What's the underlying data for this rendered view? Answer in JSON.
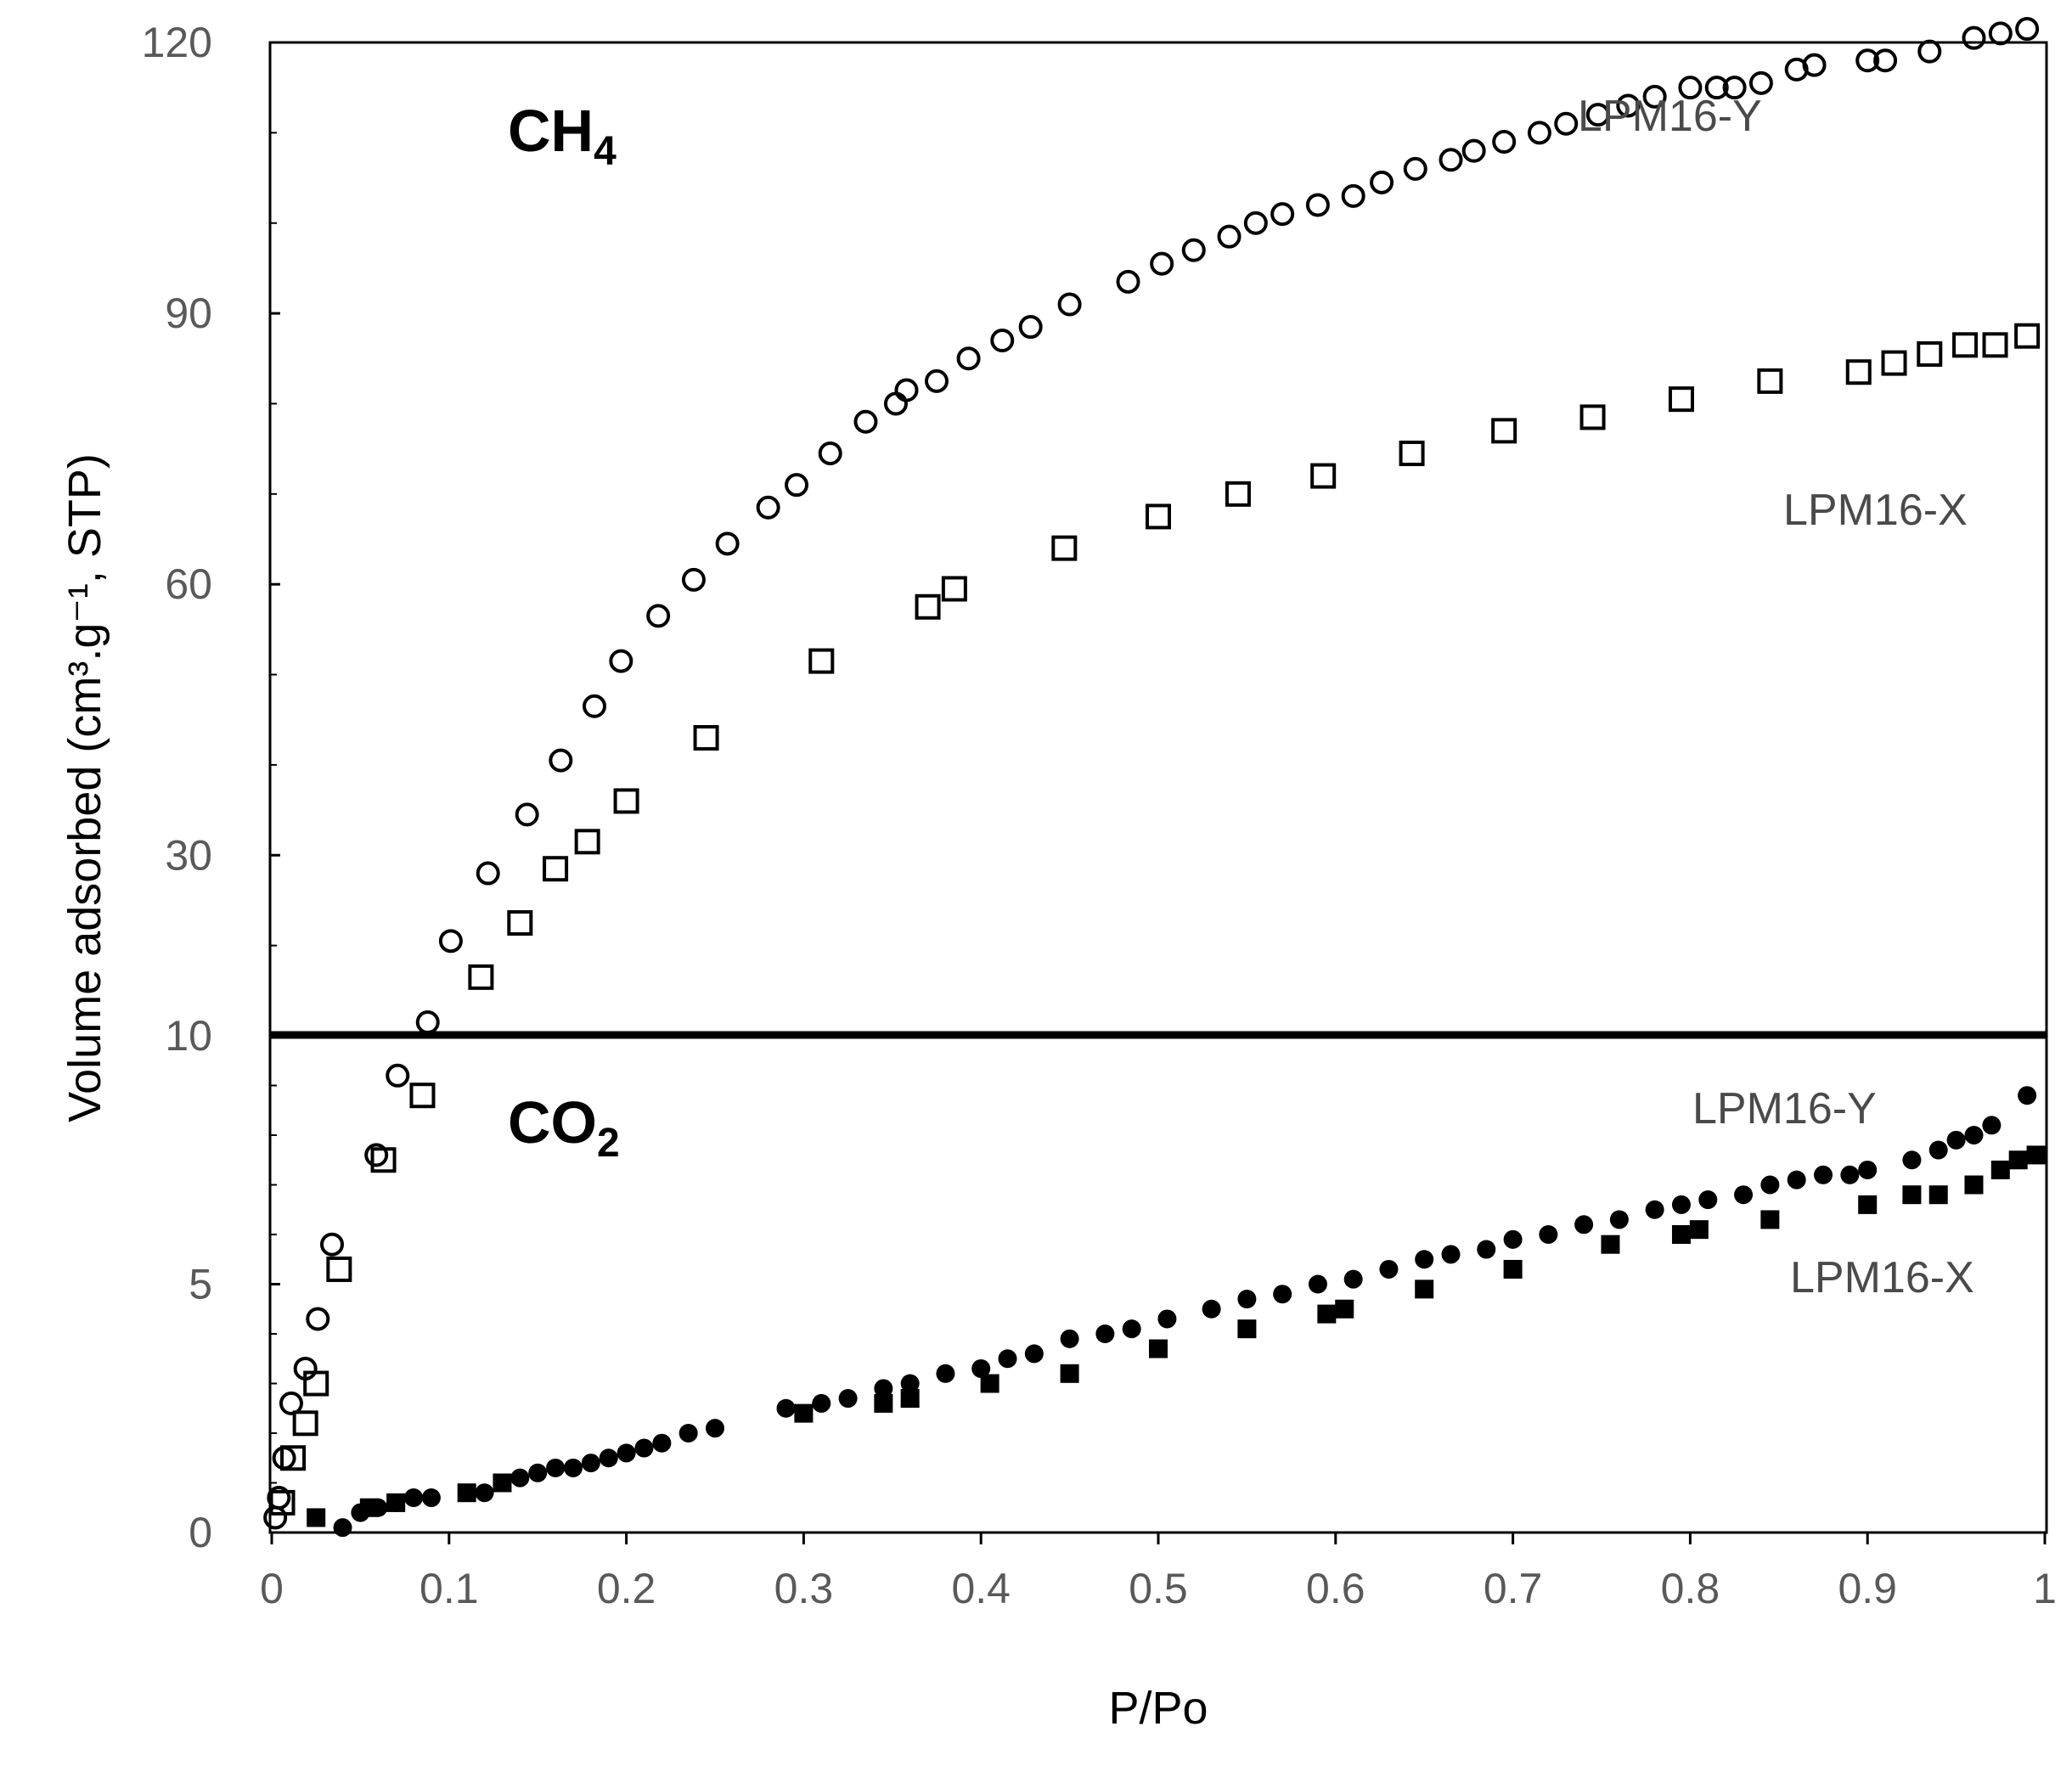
{
  "chart_data": {
    "type": "scatter",
    "xlabel": "P/Po",
    "ylabel": "Volume adsorbed (cm³.g⁻¹, STP)",
    "xlim": [
      0,
      1
    ],
    "x_ticks": [
      "0",
      "0.1",
      "0.2",
      "0.3",
      "0.4",
      "0.5",
      "0.6",
      "0.7",
      "0.8",
      "0.9",
      "1"
    ],
    "x_tick_values": [
      0,
      0.1,
      0.2,
      0.3,
      0.4,
      0.5,
      0.6,
      0.7,
      0.8,
      0.9,
      1
    ],
    "y_axis": {
      "note": "broken axis: lower panel 0-10 (CO2), upper panel 10-120 (CH4)",
      "lower_range": [
        0,
        10
      ],
      "upper_range": [
        10,
        120
      ],
      "tick_labels": [
        "0",
        "5",
        "10",
        "30",
        "60",
        "90",
        "120"
      ],
      "tick_values": [
        0,
        5,
        10,
        30,
        60,
        90,
        120
      ]
    },
    "panels": [
      {
        "gas": "CH",
        "gas_sub": "4",
        "series": [
          {
            "name": "LPM16-Y",
            "marker": "open-circle",
            "points": [
              [
                0.002,
                0.3
              ],
              [
                0.004,
                0.7
              ],
              [
                0.007,
                1.5
              ],
              [
                0.011,
                2.6
              ],
              [
                0.019,
                3.3
              ],
              [
                0.026,
                4.3
              ],
              [
                0.034,
                5.8
              ],
              [
                0.059,
                7.6
              ],
              [
                0.071,
                9.2
              ],
              [
                0.088,
                11.5
              ],
              [
                0.101,
                20.5
              ],
              [
                0.122,
                28
              ],
              [
                0.144,
                34.5
              ],
              [
                0.163,
                40.5
              ],
              [
                0.182,
                46.5
              ],
              [
                0.197,
                51.5
              ],
              [
                0.218,
                56.5
              ],
              [
                0.238,
                60.5
              ],
              [
                0.257,
                64.5
              ],
              [
                0.28,
                68.5
              ],
              [
                0.296,
                71
              ],
              [
                0.315,
                74.5
              ],
              [
                0.335,
                78
              ],
              [
                0.352,
                80
              ],
              [
                0.358,
                81.5
              ],
              [
                0.375,
                82.5
              ],
              [
                0.393,
                85
              ],
              [
                0.412,
                87
              ],
              [
                0.428,
                88.5
              ],
              [
                0.45,
                91
              ],
              [
                0.483,
                93.5
              ],
              [
                0.502,
                95.5
              ],
              [
                0.52,
                97
              ],
              [
                0.54,
                98.5
              ],
              [
                0.555,
                100
              ],
              [
                0.57,
                101
              ],
              [
                0.59,
                102
              ],
              [
                0.61,
                103
              ],
              [
                0.626,
                104.5
              ],
              [
                0.645,
                106
              ],
              [
                0.665,
                107
              ],
              [
                0.678,
                108
              ],
              [
                0.695,
                109
              ],
              [
                0.715,
                110
              ],
              [
                0.73,
                111
              ],
              [
                0.748,
                112
              ],
              [
                0.765,
                113
              ],
              [
                0.78,
                114
              ],
              [
                0.8,
                115
              ],
              [
                0.815,
                115
              ],
              [
                0.825,
                115
              ],
              [
                0.84,
                115.5
              ],
              [
                0.86,
                117
              ],
              [
                0.87,
                117.5
              ],
              [
                0.9,
                118
              ],
              [
                0.91,
                118
              ],
              [
                0.935,
                119
              ],
              [
                0.96,
                120.5
              ],
              [
                0.975,
                121
              ],
              [
                0.99,
                121.5
              ]
            ]
          },
          {
            "name": "LPM16-X",
            "marker": "open-square",
            "points": [
              [
                0.006,
                0.6
              ],
              [
                0.012,
                1.5
              ],
              [
                0.019,
                2.2
              ],
              [
                0.025,
                3
              ],
              [
                0.038,
                5.3
              ],
              [
                0.063,
                7.5
              ],
              [
                0.085,
                8.8
              ],
              [
                0.118,
                16.5
              ],
              [
                0.14,
                22.5
              ],
              [
                0.16,
                28.5
              ],
              [
                0.178,
                31.5
              ],
              [
                0.2,
                36
              ],
              [
                0.245,
                43
              ],
              [
                0.31,
                51.5
              ],
              [
                0.37,
                57.5
              ],
              [
                0.385,
                59.5
              ],
              [
                0.447,
                64
              ],
              [
                0.5,
                67.5
              ],
              [
                0.545,
                70
              ],
              [
                0.593,
                72
              ],
              [
                0.643,
                74.5
              ],
              [
                0.695,
                77
              ],
              [
                0.745,
                78.5
              ],
              [
                0.795,
                80.5
              ],
              [
                0.845,
                82.5
              ],
              [
                0.895,
                83.5
              ],
              [
                0.915,
                84.5
              ],
              [
                0.935,
                85.5
              ],
              [
                0.955,
                86.5
              ],
              [
                0.972,
                86.5
              ],
              [
                0.99,
                87.5
              ]
            ]
          }
        ]
      },
      {
        "gas": "CO",
        "gas_sub": "2",
        "series": [
          {
            "name": "LPM16-Y",
            "marker": "filled-circle",
            "points": [
              [
                0.04,
                0.1
              ],
              [
                0.05,
                0.4
              ],
              [
                0.06,
                0.5
              ],
              [
                0.07,
                0.6
              ],
              [
                0.08,
                0.7
              ],
              [
                0.09,
                0.7
              ],
              [
                0.12,
                0.8
              ],
              [
                0.13,
                1.0
              ],
              [
                0.14,
                1.1
              ],
              [
                0.15,
                1.2
              ],
              [
                0.16,
                1.3
              ],
              [
                0.17,
                1.3
              ],
              [
                0.18,
                1.4
              ],
              [
                0.19,
                1.5
              ],
              [
                0.2,
                1.6
              ],
              [
                0.21,
                1.7
              ],
              [
                0.22,
                1.8
              ],
              [
                0.235,
                2.0
              ],
              [
                0.25,
                2.1
              ],
              [
                0.29,
                2.5
              ],
              [
                0.31,
                2.6
              ],
              [
                0.325,
                2.7
              ],
              [
                0.345,
                2.9
              ],
              [
                0.36,
                3.0
              ],
              [
                0.38,
                3.2
              ],
              [
                0.4,
                3.3
              ],
              [
                0.415,
                3.5
              ],
              [
                0.43,
                3.6
              ],
              [
                0.45,
                3.9
              ],
              [
                0.47,
                4.0
              ],
              [
                0.485,
                4.1
              ],
              [
                0.505,
                4.3
              ],
              [
                0.53,
                4.5
              ],
              [
                0.55,
                4.7
              ],
              [
                0.57,
                4.8
              ],
              [
                0.59,
                5.0
              ],
              [
                0.61,
                5.1
              ],
              [
                0.63,
                5.3
              ],
              [
                0.65,
                5.5
              ],
              [
                0.665,
                5.6
              ],
              [
                0.685,
                5.7
              ],
              [
                0.7,
                5.9
              ],
              [
                0.72,
                6.0
              ],
              [
                0.74,
                6.2
              ],
              [
                0.76,
                6.3
              ],
              [
                0.78,
                6.5
              ],
              [
                0.795,
                6.6
              ],
              [
                0.81,
                6.7
              ],
              [
                0.83,
                6.8
              ],
              [
                0.845,
                7.0
              ],
              [
                0.86,
                7.1
              ],
              [
                0.875,
                7.2
              ],
              [
                0.89,
                7.2
              ],
              [
                0.9,
                7.3
              ],
              [
                0.925,
                7.5
              ],
              [
                0.94,
                7.7
              ],
              [
                0.95,
                7.9
              ],
              [
                0.96,
                8.0
              ],
              [
                0.97,
                8.2
              ],
              [
                0.99,
                8.8
              ]
            ]
          },
          {
            "name": "LPM16-X",
            "marker": "filled-square",
            "points": [
              [
                0.025,
                0.3
              ],
              [
                0.055,
                0.5
              ],
              [
                0.07,
                0.6
              ],
              [
                0.11,
                0.8
              ],
              [
                0.13,
                1.0
              ],
              [
                0.3,
                2.4
              ],
              [
                0.345,
                2.6
              ],
              [
                0.36,
                2.7
              ],
              [
                0.405,
                3.0
              ],
              [
                0.45,
                3.2
              ],
              [
                0.5,
                3.7
              ],
              [
                0.55,
                4.1
              ],
              [
                0.595,
                4.4
              ],
              [
                0.605,
                4.5
              ],
              [
                0.65,
                4.9
              ],
              [
                0.7,
                5.3
              ],
              [
                0.755,
                5.8
              ],
              [
                0.795,
                6.0
              ],
              [
                0.805,
                6.1
              ],
              [
                0.845,
                6.3
              ],
              [
                0.9,
                6.6
              ],
              [
                0.925,
                6.8
              ],
              [
                0.94,
                6.8
              ],
              [
                0.96,
                7.0
              ],
              [
                0.975,
                7.3
              ],
              [
                0.985,
                7.5
              ],
              [
                0.995,
                7.6
              ]
            ]
          }
        ]
      }
    ]
  }
}
